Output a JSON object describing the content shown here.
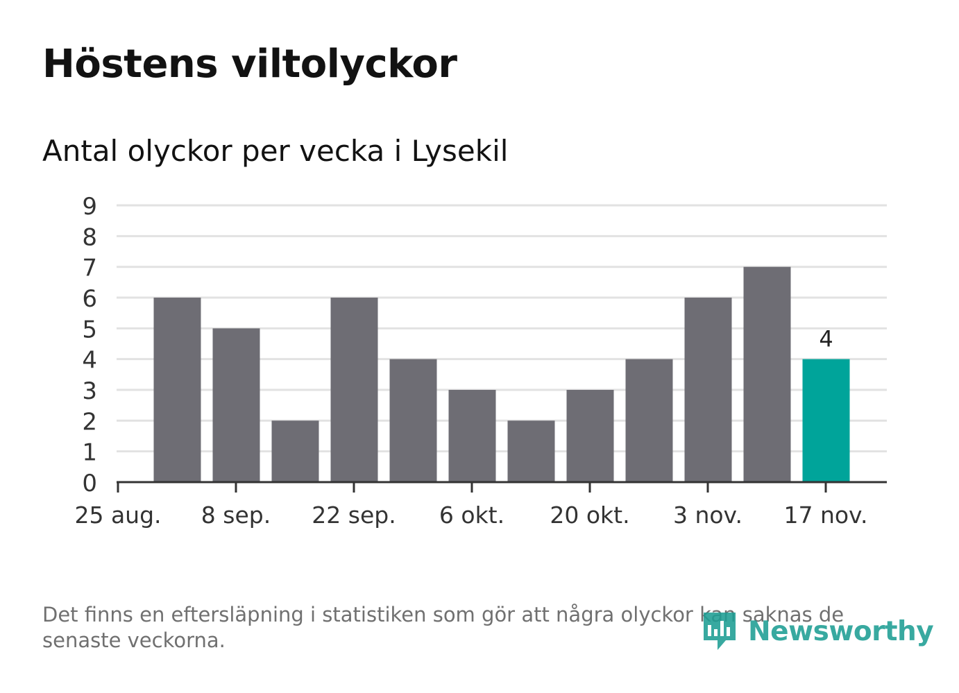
{
  "title": "Höstens viltolyckor",
  "subtitle": "Antal olyckor per vecka i Lysekil",
  "footnote": "Det finns en eftersläpning i statistiken som gör att några olyckor kan saknas de senaste veckorna.",
  "logo": {
    "text": "Newsworthy",
    "icon": "newsworthy-chart-bubble-icon"
  },
  "colors": {
    "bar": "#6e6d74",
    "highlight": "#00a49a",
    "grid": "#e2e2e2",
    "axis": "#333333",
    "tick_text": "#333333",
    "logo": "#1d9e94"
  },
  "chart_data": {
    "type": "bar",
    "title": "Höstens viltolyckor",
    "subtitle": "Antal olyckor per vecka i Lysekil",
    "xlabel": "",
    "ylabel": "",
    "ylim": [
      0,
      9
    ],
    "yticks": [
      "0",
      "1",
      "2",
      "3",
      "4",
      "5",
      "6",
      "7",
      "8",
      "9"
    ],
    "grid": true,
    "xtick_labels": [
      "25 aug.",
      "8 sep.",
      "22 sep.",
      "6 okt.",
      "20 okt.",
      "3 nov.",
      "17 nov."
    ],
    "values": [
      6,
      5,
      2,
      6,
      4,
      3,
      2,
      3,
      4,
      6,
      7,
      4
    ],
    "highlight_index": 11,
    "data_labels": [
      {
        "index": 11,
        "text": "4"
      }
    ]
  }
}
